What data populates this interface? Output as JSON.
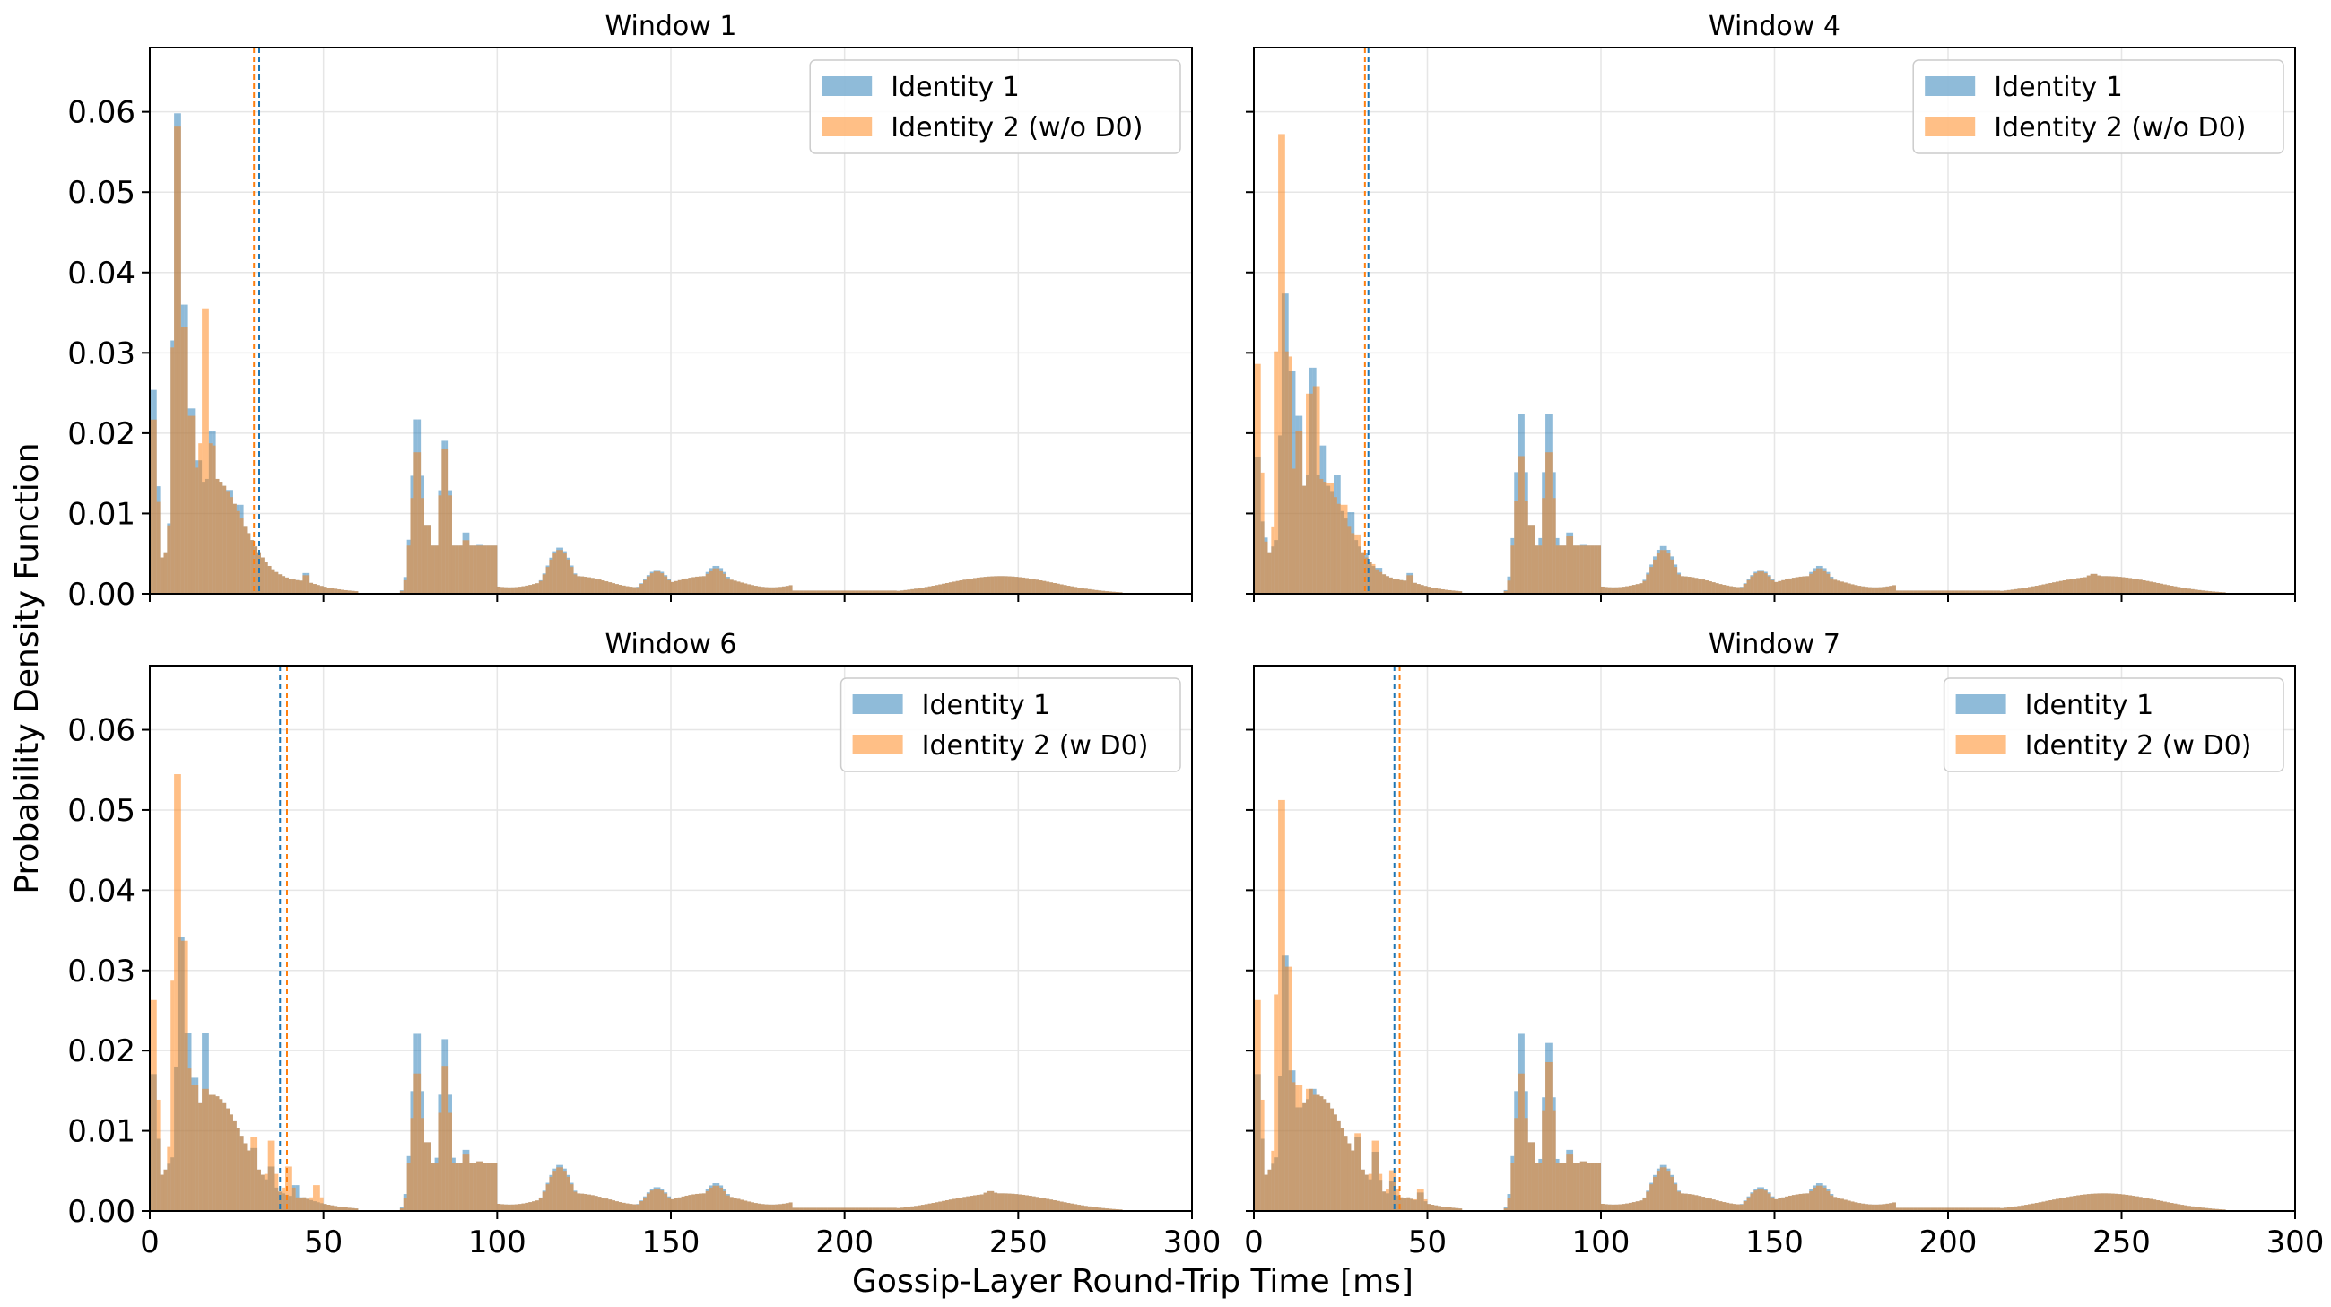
{
  "figure": {
    "xlabel": "Gossip-Layer Round-Trip Time [ms]",
    "ylabel": "Probability Density Function"
  },
  "colors": {
    "identity1": "#1f77b4",
    "identity2": "#ff7f0e",
    "grid": "#e6e6e6"
  },
  "chart_data": [
    {
      "type": "bar",
      "title": "Window 1",
      "xlim": [
        0,
        300
      ],
      "ylim": [
        0,
        0.068
      ],
      "xticks": [
        0,
        50,
        100,
        150,
        200,
        250,
        300
      ],
      "yticks": [
        "0.00",
        "0.01",
        "0.02",
        "0.03",
        "0.04",
        "0.05",
        "0.06"
      ],
      "legend_position": "top-right",
      "series": [
        {
          "name": "Identity 1",
          "mean": 31.5,
          "peaks": [
            [
              1,
              0.0275
            ],
            [
              3.5,
              0.004
            ],
            [
              8,
              0.0648
            ],
            [
              10,
              0.039
            ],
            [
              12,
              0.025
            ],
            [
              14,
              0.018
            ],
            [
              18,
              0.022
            ],
            [
              21,
              0.0145
            ],
            [
              23,
              0.014
            ],
            [
              26,
              0.012
            ],
            [
              29,
              0.0055
            ],
            [
              32,
              0.004
            ],
            [
              36,
              0.0025
            ],
            [
              45,
              0.0028
            ],
            [
              77,
              0.0228
            ],
            [
              80,
              0.009
            ],
            [
              85,
              0.02
            ],
            [
              91,
              0.008
            ],
            [
              95,
              0.0065
            ],
            [
              118,
              0.0058
            ],
            [
              146,
              0.003
            ],
            [
              163,
              0.0035
            ],
            [
              242,
              0.002
            ]
          ]
        },
        {
          "name": "Identity 2 (w/o D0)",
          "mean": 30,
          "peaks": [
            [
              1,
              0.0235
            ],
            [
              3.5,
              0.003
            ],
            [
              8,
              0.063
            ],
            [
              10,
              0.036
            ],
            [
              12,
              0.024
            ],
            [
              14,
              0.017
            ],
            [
              16,
              0.0385
            ],
            [
              18,
              0.02
            ],
            [
              21,
              0.0115
            ],
            [
              23,
              0.0105
            ],
            [
              26,
              0.0065
            ],
            [
              29,
              0.0045
            ],
            [
              32,
              0.003
            ],
            [
              36,
              0.002
            ],
            [
              45,
              0.0025
            ],
            [
              77,
              0.0185
            ],
            [
              80,
              0.009
            ],
            [
              85,
              0.019
            ],
            [
              91,
              0.007
            ],
            [
              95,
              0.006
            ],
            [
              118,
              0.0055
            ],
            [
              146,
              0.0028
            ],
            [
              163,
              0.0032
            ],
            [
              242,
              0.002
            ]
          ]
        }
      ]
    },
    {
      "type": "bar",
      "title": "Window 4",
      "xlim": [
        0,
        300
      ],
      "ylim": [
        0,
        0.068
      ],
      "xticks": [
        0,
        50,
        100,
        150,
        200,
        250,
        300
      ],
      "yticks": [
        "0.00",
        "0.01",
        "0.02",
        "0.03",
        "0.04",
        "0.05",
        "0.06"
      ],
      "legend_position": "top-right",
      "series": [
        {
          "name": "Identity 1",
          "mean": 33,
          "peaks": [
            [
              1,
              0.0185
            ],
            [
              3.5,
              0.007
            ],
            [
              9,
              0.0405
            ],
            [
              11,
              0.03
            ],
            [
              13,
              0.024
            ],
            [
              17,
              0.0305
            ],
            [
              20,
              0.02
            ],
            [
              24,
              0.016
            ],
            [
              28,
              0.011
            ],
            [
              32,
              0.0055
            ],
            [
              36,
              0.0035
            ],
            [
              45,
              0.0028
            ],
            [
              77,
              0.0235
            ],
            [
              80,
              0.009
            ],
            [
              85,
              0.0235
            ],
            [
              91,
              0.008
            ],
            [
              95,
              0.0065
            ],
            [
              118,
              0.006
            ],
            [
              146,
              0.003
            ],
            [
              163,
              0.0035
            ],
            [
              242,
              0.0025
            ]
          ]
        },
        {
          "name": "Identity 2 (w/o D0)",
          "mean": 32,
          "peaks": [
            [
              1,
              0.031
            ],
            [
              3.5,
              0.0065
            ],
            [
              8,
              0.062
            ],
            [
              10,
              0.032
            ],
            [
              13,
              0.022
            ],
            [
              16,
              0.027
            ],
            [
              18,
              0.028
            ],
            [
              22,
              0.015
            ],
            [
              26,
              0.012
            ],
            [
              30,
              0.008
            ],
            [
              34,
              0.004
            ],
            [
              45,
              0.0025
            ],
            [
              77,
              0.018
            ],
            [
              80,
              0.009
            ],
            [
              85,
              0.0185
            ],
            [
              91,
              0.0075
            ],
            [
              95,
              0.006
            ],
            [
              118,
              0.0055
            ],
            [
              146,
              0.0028
            ],
            [
              163,
              0.0032
            ],
            [
              242,
              0.0025
            ]
          ]
        }
      ]
    },
    {
      "type": "bar",
      "title": "Window 6",
      "xlim": [
        0,
        300
      ],
      "ylim": [
        0,
        0.068
      ],
      "xticks": [
        0,
        50,
        100,
        150,
        200,
        250,
        300
      ],
      "yticks": [
        "0.00",
        "0.01",
        "0.02",
        "0.03",
        "0.04",
        "0.05",
        "0.06"
      ],
      "legend_position": "top-right",
      "series": [
        {
          "name": "Identity 1",
          "mean": 37.5,
          "peaks": [
            [
              1,
              0.0185
            ],
            [
              3.5,
              0.003
            ],
            [
              9,
              0.037
            ],
            [
              11,
              0.024
            ],
            [
              13,
              0.018
            ],
            [
              16,
              0.024
            ],
            [
              19,
              0.014
            ],
            [
              22,
              0.013
            ],
            [
              26,
              0.01
            ],
            [
              30,
              0.0085
            ],
            [
              35,
              0.006
            ],
            [
              42,
              0.0035
            ],
            [
              77,
              0.0232
            ],
            [
              80,
              0.009
            ],
            [
              85,
              0.0225
            ],
            [
              91,
              0.008
            ],
            [
              95,
              0.0065
            ],
            [
              118,
              0.0058
            ],
            [
              146,
              0.003
            ],
            [
              163,
              0.0035
            ],
            [
              242,
              0.0025
            ]
          ]
        },
        {
          "name": "Identity 2 (w D0)",
          "mean": 39.5,
          "peaks": [
            [
              1,
              0.0285
            ],
            [
              3.5,
              0.0045
            ],
            [
              8,
              0.059
            ],
            [
              10,
              0.0365
            ],
            [
              13,
              0.017
            ],
            [
              16,
              0.0165
            ],
            [
              20,
              0.0115
            ],
            [
              25,
              0.011
            ],
            [
              30,
              0.01
            ],
            [
              35,
              0.0095
            ],
            [
              40,
              0.006
            ],
            [
              48,
              0.0035
            ],
            [
              77,
              0.018
            ],
            [
              80,
              0.009
            ],
            [
              85,
              0.019
            ],
            [
              91,
              0.0075
            ],
            [
              95,
              0.0065
            ],
            [
              118,
              0.0055
            ],
            [
              146,
              0.0028
            ],
            [
              163,
              0.0032
            ],
            [
              242,
              0.0025
            ]
          ]
        }
      ]
    },
    {
      "type": "bar",
      "title": "Window 7",
      "xlim": [
        0,
        300
      ],
      "ylim": [
        0,
        0.068
      ],
      "xticks": [
        0,
        50,
        100,
        150,
        200,
        250,
        300
      ],
      "yticks": [
        "0.00",
        "0.01",
        "0.02",
        "0.03",
        "0.04",
        "0.05",
        "0.06"
      ],
      "legend_position": "top-right",
      "series": [
        {
          "name": "Identity 1",
          "mean": 40.5,
          "peaks": [
            [
              1,
              0.0185
            ],
            [
              3.5,
              0.003
            ],
            [
              9,
              0.0345
            ],
            [
              11,
              0.019
            ],
            [
              13,
              0.014
            ],
            [
              17,
              0.0165
            ],
            [
              20,
              0.011
            ],
            [
              25,
              0.0105
            ],
            [
              30,
              0.01
            ],
            [
              35,
              0.008
            ],
            [
              40,
              0.004
            ],
            [
              48,
              0.0025
            ],
            [
              77,
              0.0232
            ],
            [
              80,
              0.009
            ],
            [
              85,
              0.022
            ],
            [
              91,
              0.008
            ],
            [
              95,
              0.0065
            ],
            [
              118,
              0.0058
            ],
            [
              146,
              0.003
            ],
            [
              163,
              0.0035
            ],
            [
              250,
              0.002
            ]
          ]
        },
        {
          "name": "Identity 2 (w D0)",
          "mean": 42,
          "peaks": [
            [
              1,
              0.0285
            ],
            [
              3.5,
              0.0045
            ],
            [
              8,
              0.0555
            ],
            [
              10,
              0.033
            ],
            [
              13,
              0.017
            ],
            [
              16,
              0.0165
            ],
            [
              20,
              0.0115
            ],
            [
              25,
              0.011
            ],
            [
              30,
              0.0105
            ],
            [
              35,
              0.0095
            ],
            [
              40,
              0.0055
            ],
            [
              48,
              0.003
            ],
            [
              77,
              0.018
            ],
            [
              80,
              0.009
            ],
            [
              85,
              0.0195
            ],
            [
              91,
              0.0075
            ],
            [
              95,
              0.0065
            ],
            [
              118,
              0.0055
            ],
            [
              146,
              0.0028
            ],
            [
              163,
              0.0032
            ],
            [
              250,
              0.002
            ]
          ]
        }
      ]
    }
  ]
}
